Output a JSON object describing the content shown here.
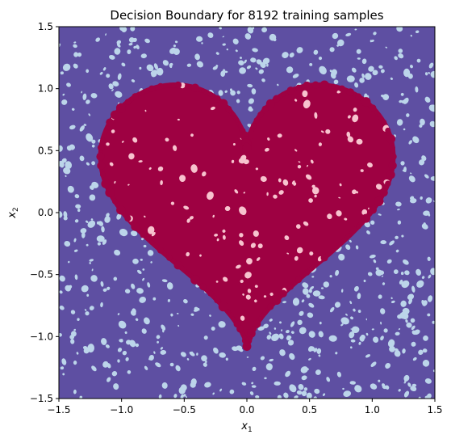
{
  "chart_data": {
    "type": "heatmap",
    "title": "Decision Boundary for 8192 training samples",
    "xlabel_var": "x",
    "xlabel_sub": "1",
    "ylabel_var": "x",
    "ylabel_sub": "2",
    "xlim": [
      -1.5,
      1.5
    ],
    "ylim": [
      -1.5,
      1.5
    ],
    "xticks": [
      -1.5,
      -1.0,
      -0.5,
      0.0,
      0.5,
      1.0,
      1.5
    ],
    "yticks": [
      -1.5,
      -1.0,
      -0.5,
      0.0,
      0.5,
      1.0,
      1.5
    ],
    "xtick_labels": [
      "−1.5",
      "−1.0",
      "−0.5",
      "0.0",
      "0.5",
      "1.0",
      "1.5"
    ],
    "ytick_labels": [
      "−1.5",
      "−1.0",
      "−0.5",
      "0.0",
      "0.5",
      "1.0",
      "1.5"
    ],
    "grid": false,
    "regions": [
      {
        "class": "outside",
        "color": "#5e4fa2",
        "light_color": "#bcd5ea"
      },
      {
        "class": "heart",
        "color": "#9e0142",
        "light_color": "#f7c3ce"
      }
    ],
    "heart_shape": "heart curve centered near (0, 0.15), spanning x in [-1.17, 1.17], y in [-0.93, 1.22]"
  }
}
